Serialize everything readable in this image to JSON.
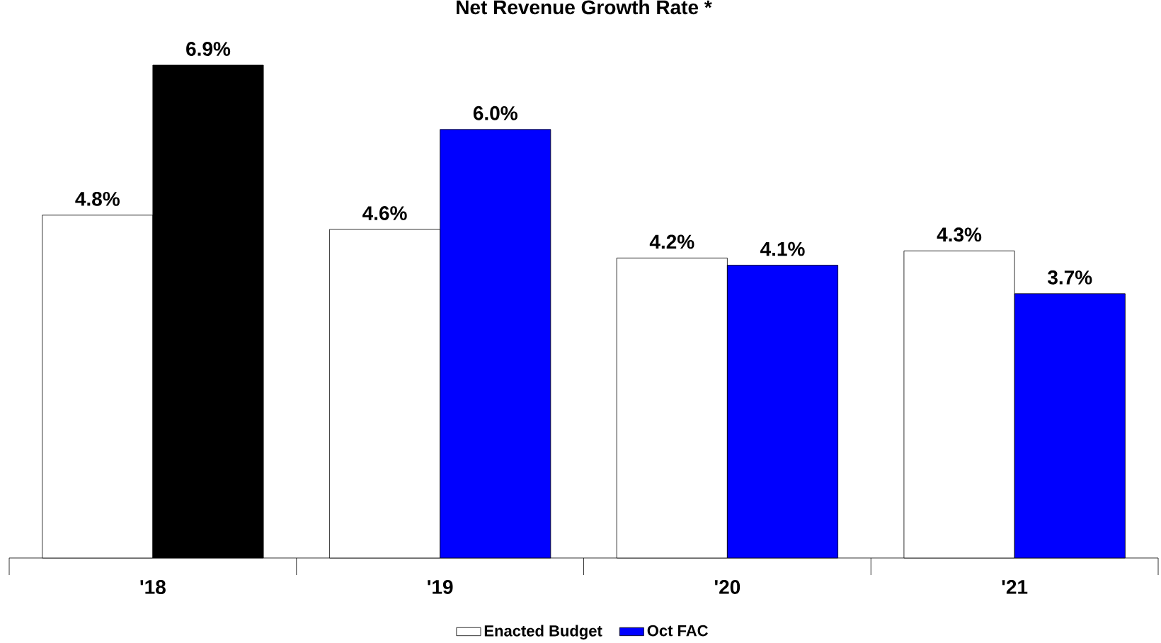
{
  "chart_data": {
    "type": "bar",
    "title": "Net Revenue Growth Rate *",
    "categories": [
      "'18",
      "'19",
      "'20",
      "'21"
    ],
    "series": [
      {
        "name": "Enacted Budget",
        "color": "#ffffff",
        "values": [
          4.8,
          4.6,
          4.2,
          4.3
        ],
        "value_labels": [
          "4.8%",
          "4.6%",
          "4.2%",
          "4.3%"
        ]
      },
      {
        "name": "Oct FAC",
        "color": "#0000ff",
        "colors": [
          "#000000",
          "#0000ff",
          "#0000ff",
          "#0000ff"
        ],
        "values": [
          6.9,
          6.0,
          4.1,
          3.7
        ],
        "value_labels": [
          "6.9%",
          "6.0%",
          "4.1%",
          "3.7%"
        ]
      }
    ],
    "legend": "bottom"
  }
}
